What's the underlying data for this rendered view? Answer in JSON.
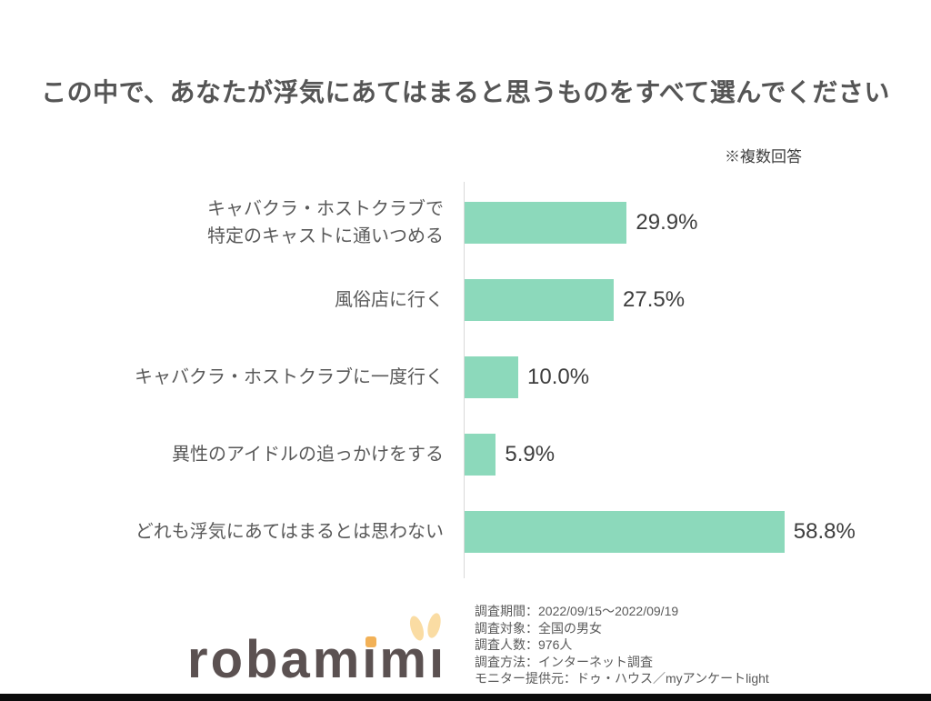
{
  "title": "この中で、あなたが浮気にあてはまると思うものをすべて選んでください",
  "note": "※複数回答",
  "chart_data": {
    "type": "bar",
    "orientation": "horizontal",
    "value_unit": "%",
    "xlim": [
      0,
      70
    ],
    "grid": false,
    "legend": false,
    "categories": [
      "キャバクラ・ホストクラブで特定のキャストに通いつめる",
      "風俗店に行く",
      "キャバクラ・ホストクラブに一度行く",
      "異性のアイドルの追っかけをする",
      "どれも浮気にあてはまるとは思わない"
    ],
    "values": [
      29.9,
      27.5,
      10.0,
      5.9,
      58.8
    ],
    "items": [
      {
        "label_lines": [
          "キャバクラ・ホストクラブで",
          "特定のキャストに通いつめる"
        ],
        "value": 29.9,
        "value_label": "29.9%"
      },
      {
        "label_lines": [
          "風俗店に行く"
        ],
        "value": 27.5,
        "value_label": "27.5%"
      },
      {
        "label_lines": [
          "キャバクラ・ホストクラブに一度行く"
        ],
        "value": 10.0,
        "value_label": "10.0%"
      },
      {
        "label_lines": [
          "異性のアイドルの追っかけをする"
        ],
        "value": 5.9,
        "value_label": "5.9%"
      },
      {
        "label_lines": [
          "どれも浮気にあてはまるとは思わない"
        ],
        "value": 58.8,
        "value_label": "58.8%"
      }
    ],
    "bar_color": "#8cd9bb",
    "axis_color": "#d9d9d9"
  },
  "footer": {
    "logo": {
      "text": "robamimi",
      "letters_color": "#5b5151",
      "dot_color": "#f2b157",
      "ears_color": "#fadca3",
      "dot_letter_index": 5,
      "ears_letter_index": 7
    },
    "source_lines": [
      "調査期間：2022/09/15～2022/09/19",
      "調査対象：全国の男女",
      "調査人数：976人",
      "調査方法：インターネット調査",
      "モニター提供元：ドゥ・ハウス／myアンケートlight"
    ]
  },
  "colors": {
    "title_text": "#555555",
    "label_text": "#595959",
    "value_text": "#3d3d3d",
    "footer_text": "#595959",
    "bottom_band": "#0b0b0b"
  }
}
